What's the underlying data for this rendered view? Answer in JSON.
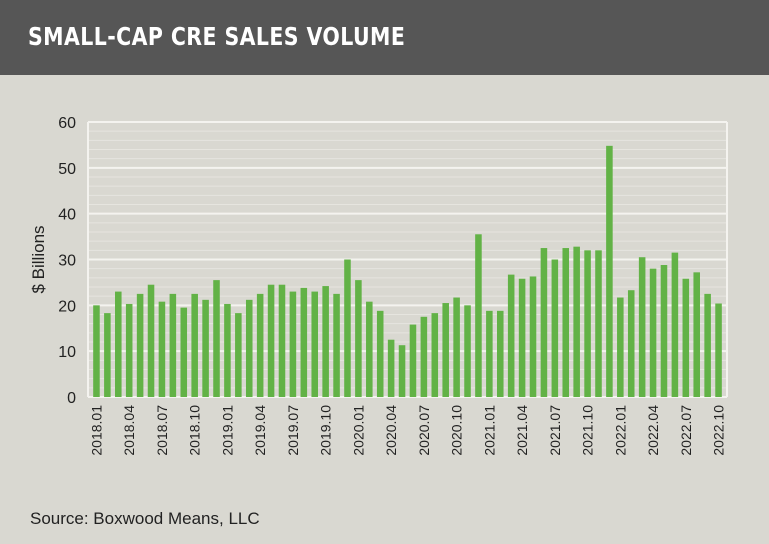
{
  "header": {
    "title": "SMALL-CAP CRE SALES VOLUME"
  },
  "source": "Source: Boxwood Means, LLC",
  "colors": {
    "bar": "#62b246",
    "background": "#d9d8d1",
    "header": "#565656"
  },
  "chart_data": {
    "type": "bar",
    "title": "SMALL-CAP CRE SALES VOLUME",
    "xlabel": "",
    "ylabel": "$ Billions",
    "ylim": [
      0,
      60
    ],
    "yticks": [
      0,
      10,
      20,
      30,
      40,
      50,
      60
    ],
    "grid": true,
    "categories": [
      "2018.01",
      "2018.02",
      "2018.03",
      "2018.04",
      "2018.05",
      "2018.06",
      "2018.07",
      "2018.08",
      "2018.09",
      "2018.10",
      "2018.11",
      "2018.12",
      "2019.01",
      "2019.02",
      "2019.03",
      "2019.04",
      "2019.05",
      "2019.06",
      "2019.07",
      "2019.08",
      "2019.09",
      "2019.10",
      "2019.11",
      "2019.12",
      "2020.01",
      "2020.02",
      "2020.03",
      "2020.04",
      "2020.05",
      "2020.06",
      "2020.07",
      "2020.08",
      "2020.09",
      "2020.10",
      "2020.11",
      "2020.12",
      "2021.01",
      "2021.02",
      "2021.03",
      "2021.04",
      "2021.05",
      "2021.06",
      "2021.07",
      "2021.08",
      "2021.09",
      "2021.10",
      "2021.11",
      "2021.12",
      "2022.01",
      "2022.02",
      "2022.03",
      "2022.04",
      "2022.05",
      "2022.06",
      "2022.07",
      "2022.08",
      "2022.09",
      "2022.10"
    ],
    "xtick_labels": [
      "2018.01",
      "2018.04",
      "2018.07",
      "2018.10",
      "2019.01",
      "2019.04",
      "2019.07",
      "2019.10",
      "2020.01",
      "2020.04",
      "2020.07",
      "2020.10",
      "2021.01",
      "2021.04",
      "2021.07",
      "2021.10",
      "2022.01",
      "2022.04",
      "2022.07",
      "2022.10"
    ],
    "values": [
      20,
      18.3,
      23,
      20.3,
      22.5,
      24.5,
      20.8,
      22.5,
      19.5,
      22.5,
      21.2,
      25.5,
      20.3,
      18.3,
      21.2,
      22.5,
      24.5,
      24.5,
      23,
      23.8,
      23,
      24.2,
      22.5,
      30,
      25.5,
      20.8,
      18.8,
      12.5,
      11.3,
      15.8,
      17.5,
      18.3,
      20.5,
      21.7,
      20,
      35.5,
      18.8,
      18.8,
      26.7,
      25.8,
      26.3,
      32.5,
      30,
      32.5,
      32.8,
      32,
      32,
      54.8,
      21.7,
      23.3,
      30.5,
      28,
      28.8,
      31.5,
      25.8,
      27.2,
      22.5,
      20.4
    ]
  }
}
